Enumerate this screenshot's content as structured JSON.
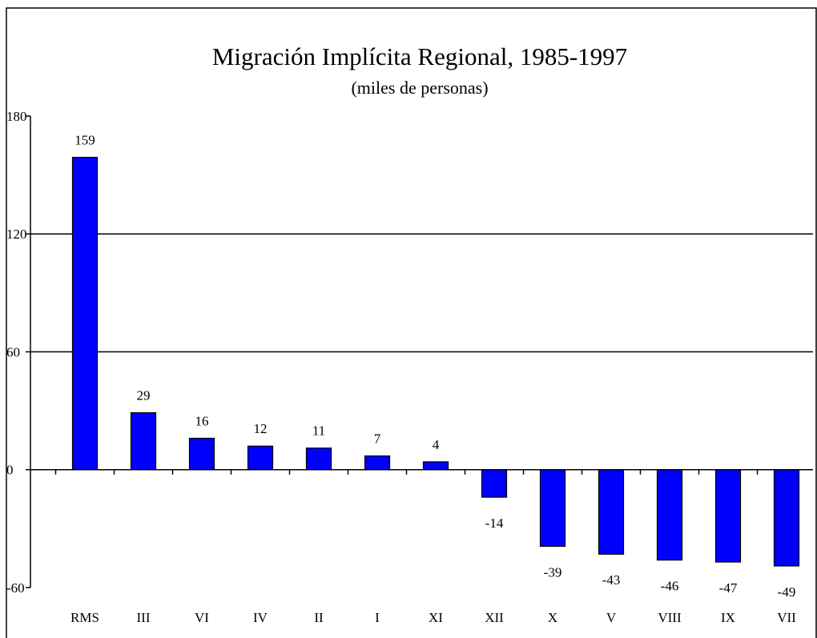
{
  "chart_data": {
    "type": "bar",
    "title": "Migración Implícita Regional, 1985-1997",
    "subtitle": "(miles de personas)",
    "categories": [
      "RMS",
      "III",
      "VI",
      "IV",
      "II",
      "I",
      "XI",
      "XII",
      "X",
      "V",
      "VIII",
      "IX",
      "VII"
    ],
    "values": [
      159,
      29,
      16,
      12,
      11,
      7,
      4,
      -14,
      -39,
      -43,
      -46,
      -47,
      -49
    ],
    "color": "#0000ff",
    "ylim": [
      -60,
      180
    ],
    "yticks": [
      180,
      120,
      60,
      0,
      -60
    ],
    "grid": true
  }
}
